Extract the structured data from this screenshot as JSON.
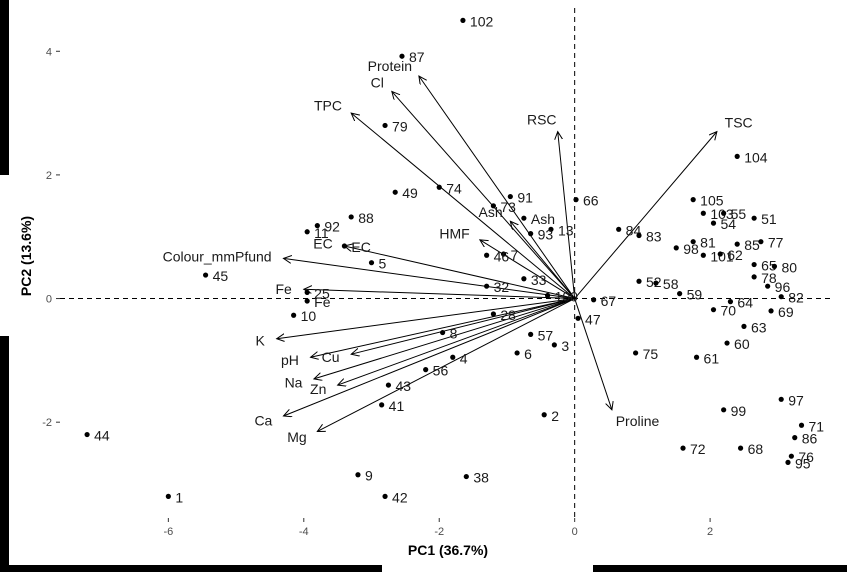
{
  "chart_data": {
    "type": "scatter",
    "xlabel": "PC1 (36.7%)",
    "ylabel": "PC2 (13.6%)",
    "xlim": [
      -7.6,
      3.8
    ],
    "ylim": [
      -3.55,
      4.7
    ],
    "x_ticks": [
      -6,
      -4,
      -2,
      0,
      2
    ],
    "y_ticks": [
      -2,
      0,
      2,
      4
    ],
    "grid": false,
    "reference_lines": {
      "x": 0,
      "y": 0
    },
    "points": [
      {
        "label": "102",
        "x": -1.65,
        "y": 4.5
      },
      {
        "label": "87",
        "x": -2.55,
        "y": 3.92
      },
      {
        "label": "79",
        "x": -2.8,
        "y": 2.8
      },
      {
        "label": "104",
        "x": 2.4,
        "y": 2.3
      },
      {
        "label": "91",
        "x": -0.95,
        "y": 1.65
      },
      {
        "label": "66",
        "x": 0.02,
        "y": 1.6
      },
      {
        "label": "74",
        "x": -2.0,
        "y": 1.8
      },
      {
        "label": "49",
        "x": -2.65,
        "y": 1.72
      },
      {
        "label": "73",
        "x": -1.2,
        "y": 1.5
      },
      {
        "label": "Ash",
        "x": -0.75,
        "y": 1.3
      },
      {
        "label": "13",
        "x": -0.35,
        "y": 1.12
      },
      {
        "label": "105",
        "x": 1.75,
        "y": 1.6
      },
      {
        "label": "103",
        "x": 1.9,
        "y": 1.38
      },
      {
        "label": "55",
        "x": 2.2,
        "y": 1.38
      },
      {
        "label": "54",
        "x": 2.05,
        "y": 1.22
      },
      {
        "label": "51",
        "x": 2.65,
        "y": 1.3
      },
      {
        "label": "77",
        "x": 2.75,
        "y": 0.92
      },
      {
        "label": "84",
        "x": 0.65,
        "y": 1.12
      },
      {
        "label": "83",
        "x": 0.95,
        "y": 1.02
      },
      {
        "label": "81",
        "x": 1.75,
        "y": 0.92
      },
      {
        "label": "85",
        "x": 2.4,
        "y": 0.88
      },
      {
        "label": "92",
        "x": -3.8,
        "y": 1.18
      },
      {
        "label": "88",
        "x": -3.3,
        "y": 1.32
      },
      {
        "label": "11",
        "x": -3.95,
        "y": 1.08
      },
      {
        "label": "93",
        "x": -0.65,
        "y": 1.05
      },
      {
        "label": "EC",
        "x": -3.4,
        "y": 0.85
      },
      {
        "label": "7",
        "x": -1.05,
        "y": 0.72
      },
      {
        "label": "46",
        "x": -1.3,
        "y": 0.7
      },
      {
        "label": "98",
        "x": 1.5,
        "y": 0.82
      },
      {
        "label": "101",
        "x": 1.9,
        "y": 0.7
      },
      {
        "label": "62",
        "x": 2.15,
        "y": 0.72
      },
      {
        "label": "65",
        "x": 2.65,
        "y": 0.55
      },
      {
        "label": "80",
        "x": 2.95,
        "y": 0.52
      },
      {
        "label": "5",
        "x": -3.0,
        "y": 0.58
      },
      {
        "label": "45",
        "x": -5.45,
        "y": 0.38
      },
      {
        "label": "33",
        "x": -0.75,
        "y": 0.32
      },
      {
        "label": "32",
        "x": -1.3,
        "y": 0.2
      },
      {
        "label": "52",
        "x": 0.95,
        "y": 0.28
      },
      {
        "label": "58",
        "x": 1.2,
        "y": 0.25
      },
      {
        "label": "78",
        "x": 2.65,
        "y": 0.35
      },
      {
        "label": "96",
        "x": 2.85,
        "y": 0.2
      },
      {
        "label": "82",
        "x": 3.05,
        "y": 0.03
      },
      {
        "label": "25",
        "x": -3.95,
        "y": 0.1
      },
      {
        "label": "Fe",
        "x": -3.95,
        "y": -0.04
      },
      {
        "label": "100",
        "x": -0.4,
        "y": 0.05
      },
      {
        "label": "67",
        "x": 0.28,
        "y": -0.02
      },
      {
        "label": "59",
        "x": 1.55,
        "y": 0.08
      },
      {
        "label": "64",
        "x": 2.3,
        "y": -0.05
      },
      {
        "label": "70",
        "x": 2.05,
        "y": -0.18
      },
      {
        "label": "69",
        "x": 2.9,
        "y": -0.2
      },
      {
        "label": "10",
        "x": -4.15,
        "y": -0.27
      },
      {
        "label": "47",
        "x": 0.05,
        "y": -0.32
      },
      {
        "label": "28",
        "x": -1.2,
        "y": -0.25
      },
      {
        "label": "8",
        "x": -1.95,
        "y": -0.55
      },
      {
        "label": "57",
        "x": -0.65,
        "y": -0.58
      },
      {
        "label": "63",
        "x": 2.5,
        "y": -0.45
      },
      {
        "label": "3",
        "x": -0.3,
        "y": -0.75
      },
      {
        "label": "60",
        "x": 2.25,
        "y": -0.72
      },
      {
        "label": "6",
        "x": -0.85,
        "y": -0.88
      },
      {
        "label": "75",
        "x": 0.9,
        "y": -0.88
      },
      {
        "label": "61",
        "x": 1.8,
        "y": -0.95
      },
      {
        "label": "4",
        "x": -1.8,
        "y": -0.95
      },
      {
        "label": "56",
        "x": -2.2,
        "y": -1.15
      },
      {
        "label": "43",
        "x": -2.75,
        "y": -1.4
      },
      {
        "label": "41",
        "x": -2.85,
        "y": -1.72
      },
      {
        "label": "97",
        "x": 3.05,
        "y": -1.63
      },
      {
        "label": "99",
        "x": 2.2,
        "y": -1.8
      },
      {
        "label": "2",
        "x": -0.45,
        "y": -1.88
      },
      {
        "label": "71",
        "x": 3.35,
        "y": -2.05
      },
      {
        "label": "86",
        "x": 3.25,
        "y": -2.25
      },
      {
        "label": "76",
        "x": 3.2,
        "y": -2.55
      },
      {
        "label": "95",
        "x": 3.15,
        "y": -2.65
      },
      {
        "label": "72",
        "x": 1.6,
        "y": -2.42
      },
      {
        "label": "68",
        "x": 2.45,
        "y": -2.42
      },
      {
        "label": "44",
        "x": -7.2,
        "y": -2.2
      },
      {
        "label": "9",
        "x": -3.2,
        "y": -2.85
      },
      {
        "label": "38",
        "x": -1.6,
        "y": -2.88
      },
      {
        "label": "42",
        "x": -2.8,
        "y": -3.2
      },
      {
        "label": "1",
        "x": -6.0,
        "y": -3.2
      }
    ],
    "loadings": [
      {
        "name": "Protein",
        "x": -2.3,
        "y": 3.6
      },
      {
        "name": "Cl",
        "x": -2.7,
        "y": 3.35
      },
      {
        "name": "TPC",
        "x": -3.3,
        "y": 3.0
      },
      {
        "name": "RSC",
        "x": -0.25,
        "y": 2.7
      },
      {
        "name": "TSC",
        "x": 2.1,
        "y": 2.7
      },
      {
        "name": "EC",
        "x": -3.4,
        "y": 0.85
      },
      {
        "name": "Colour_mmPfund",
        "x": -4.3,
        "y": 0.65
      },
      {
        "name": "HMF",
        "x": -1.4,
        "y": 0.95
      },
      {
        "name": "Ash",
        "x": -0.95,
        "y": 1.25
      },
      {
        "name": "Fe",
        "x": -4.0,
        "y": 0.15
      },
      {
        "name": "K",
        "x": -4.4,
        "y": -0.65
      },
      {
        "name": "pH",
        "x": -3.9,
        "y": -0.95
      },
      {
        "name": "Cu",
        "x": -3.3,
        "y": -0.9
      },
      {
        "name": "Na",
        "x": -3.85,
        "y": -1.3
      },
      {
        "name": "Zn",
        "x": -3.5,
        "y": -1.4
      },
      {
        "name": "Ca",
        "x": -4.3,
        "y": -1.9
      },
      {
        "name": "Mg",
        "x": -3.8,
        "y": -2.15
      },
      {
        "name": "Proline",
        "x": 0.55,
        "y": -1.8
      }
    ]
  }
}
